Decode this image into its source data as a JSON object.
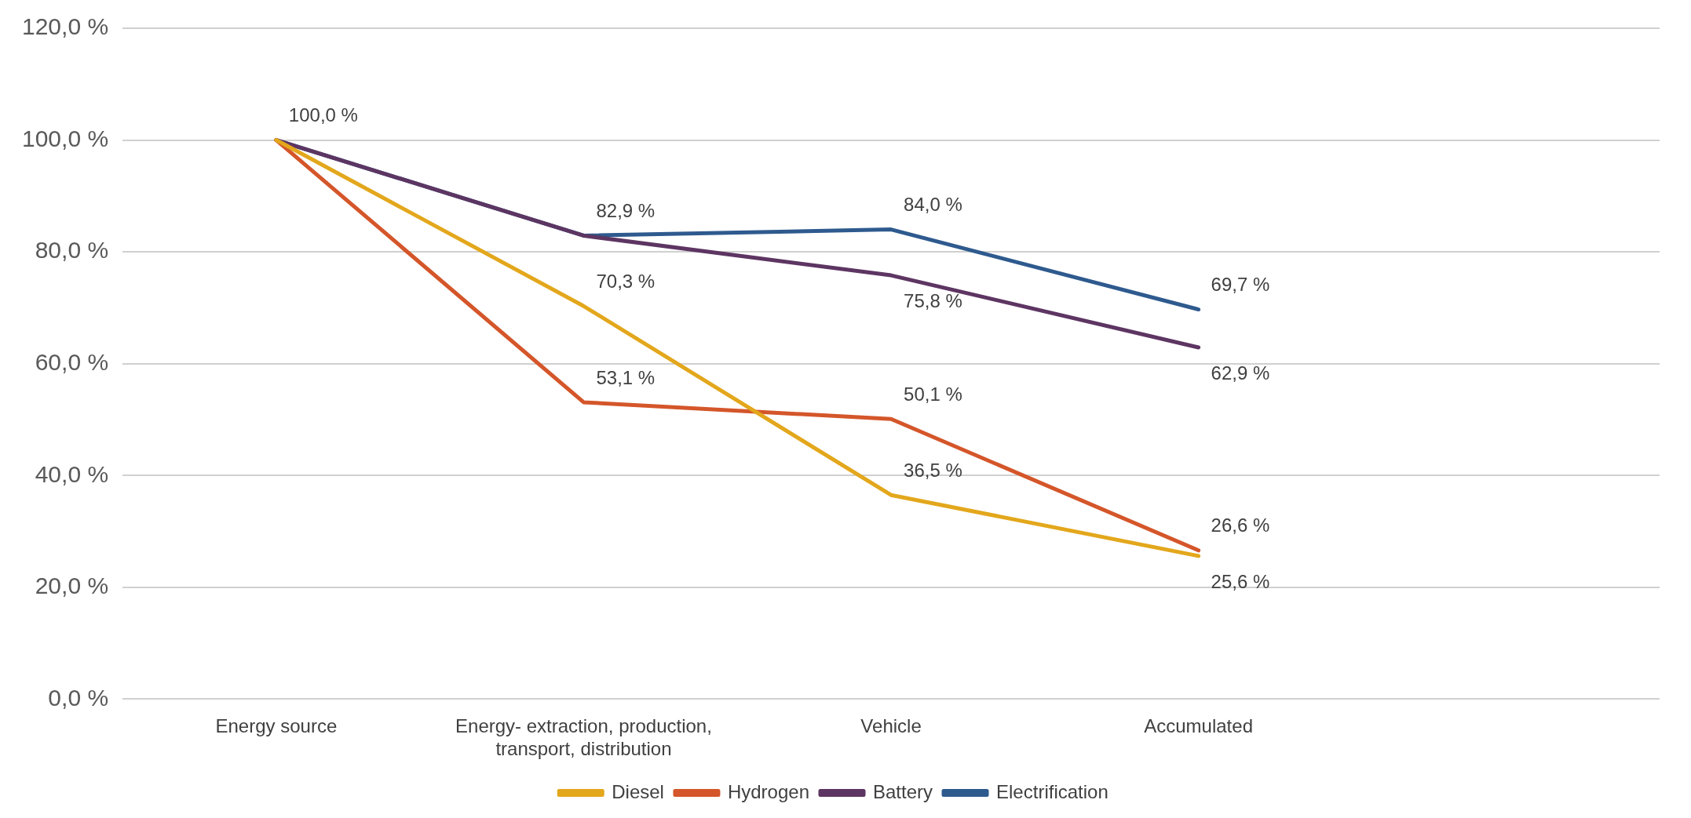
{
  "chart_data": {
    "type": "line",
    "categories": [
      "Energy source",
      "Energy- extraction, production, transport, distribution",
      "Vehicle",
      "Accumulated",
      null
    ],
    "series": [
      {
        "name": "Diesel",
        "color": "#e3a71c",
        "values": [
          100,
          70.3,
          36.5,
          25.6,
          null
        ],
        "value_labels": [
          null,
          "70,3 %",
          "36,5 %",
          "25,6 %",
          null
        ]
      },
      {
        "name": "Hydrogen",
        "color": "#d4562a",
        "values": [
          100,
          53.1,
          50.1,
          26.6,
          null
        ],
        "value_labels": [
          null,
          "53,1 %",
          "50,1 %",
          "26,6 %",
          null
        ]
      },
      {
        "name": "Battery",
        "color": "#5d3562",
        "values": [
          100,
          82.9,
          75.8,
          62.9,
          null
        ],
        "value_labels": [
          null,
          null,
          "75,8 %",
          "62,9 %",
          null
        ]
      },
      {
        "name": "Electrification",
        "color": "#2e5a8e",
        "values": [
          100,
          82.9,
          84.0,
          69.7,
          null
        ],
        "value_labels": [
          "100,0 %",
          "82,9 %",
          "84,0 %",
          "69,7 %",
          null
        ]
      }
    ],
    "ylim": [
      0,
      120
    ],
    "yticks": [
      {
        "value": 0,
        "label": "0,0 %"
      },
      {
        "value": 20,
        "label": "20,0 %"
      },
      {
        "value": 40,
        "label": "40,0 %"
      },
      {
        "value": 60,
        "label": "60,0 %"
      },
      {
        "value": 80,
        "label": "80,0 %"
      },
      {
        "value": 100,
        "label": "100,0 %"
      },
      {
        "value": 120,
        "label": "120,0 %"
      }
    ],
    "grid": "y",
    "legend": "bottom",
    "marker": "none",
    "line_style": "solid"
  }
}
